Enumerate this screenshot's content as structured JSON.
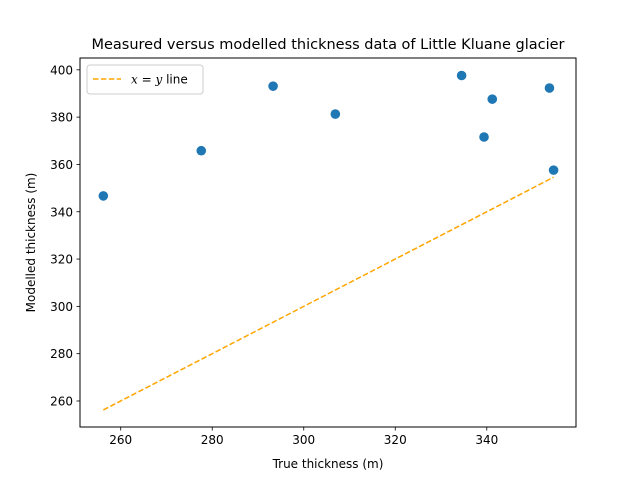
{
  "chart_data": {
    "type": "scatter",
    "title": "Measured versus modelled thickness data of Little Kluane glacier",
    "xlabel": "True thickness (m)",
    "ylabel": "Modelled thickness (m)",
    "xlim": [
      251.1,
      359.5
    ],
    "ylim": [
      249.0,
      405.0
    ],
    "xticks": [
      260,
      280,
      300,
      320,
      340
    ],
    "yticks": [
      260,
      280,
      300,
      320,
      340,
      360,
      380,
      400
    ],
    "grid": false,
    "legend_position": "top-left",
    "series": [
      {
        "type": "scatter",
        "color": "#1f77b4",
        "points": [
          {
            "x": 256.2,
            "y": 346.7
          },
          {
            "x": 277.6,
            "y": 365.8
          },
          {
            "x": 293.3,
            "y": 393.1
          },
          {
            "x": 306.9,
            "y": 381.3
          },
          {
            "x": 334.5,
            "y": 397.6
          },
          {
            "x": 339.4,
            "y": 371.6
          },
          {
            "x": 341.2,
            "y": 387.6
          },
          {
            "x": 353.7,
            "y": 392.3
          },
          {
            "x": 354.6,
            "y": 357.6
          }
        ]
      },
      {
        "name": "x = y line",
        "name_parts": {
          "var1": "x",
          "eq": " = ",
          "var2": "y",
          "rest": " line"
        },
        "type": "line",
        "style": "dashed",
        "color": "#ffa500",
        "x": [
          256.2,
          354.6
        ],
        "y": [
          256.2,
          354.6
        ]
      }
    ]
  }
}
